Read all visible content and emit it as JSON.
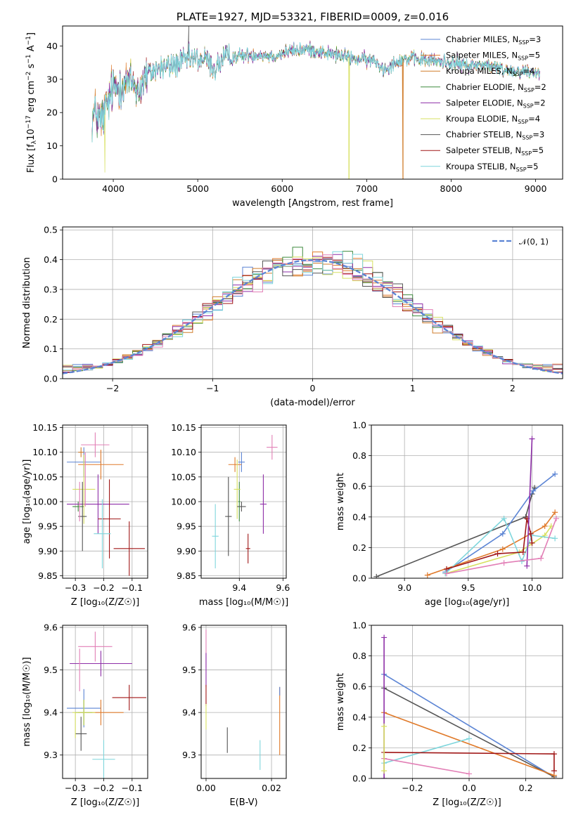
{
  "figure_title": "PLATE=1927, MJD=53321, FIBERID=0009, z=0.016",
  "colors": {
    "Chabrier MILES": "#5b84d4",
    "Salpeter MILES": "#e07a2a",
    "Kroupa MILES": "#d07d2c",
    "Chabrier ELODIE": "#3f8a3f",
    "Salpeter ELODIE": "#8e2fa8",
    "Kroupa ELODIE": "#d7e060",
    "Chabrier STELIB": "#555555",
    "Salpeter STELIB": "#a01616",
    "Kroupa STELIB": "#7fd6dc",
    "normal": "#5b84d4",
    "pink": "#e27fb6",
    "orange": "#e07a2a"
  },
  "chart_data": [
    {
      "type": "line",
      "id": "spectrum",
      "title": "PLATE=1927, MJD=53321, FIBERID=0009, z=0.016",
      "xlabel": "wavelength [Angstrom, rest frame]",
      "ylabel_parts": {
        "pre": "Flux [f",
        "sub": "λ",
        "mid": "10",
        "sup1": "−17",
        "post": " erg cm",
        "sup2": "−2",
        "post2": " s",
        "sup3": "−1",
        "post3": " A",
        "sup4": "−1",
        "end": "]"
      },
      "xlim": [
        3400,
        9320
      ],
      "ylim": [
        0,
        46
      ],
      "xticks": [
        4000,
        5000,
        6000,
        7000,
        8000,
        9000
      ],
      "yticks": [
        0,
        10,
        20,
        30,
        40
      ],
      "grid": false,
      "legend_position": "top-right",
      "legend": [
        {
          "name": "Chabrier MILES",
          "n": "3"
        },
        {
          "name": "Salpeter MILES",
          "n": "5"
        },
        {
          "name": "Kroupa MILES",
          "n": "4"
        },
        {
          "name": "Chabrier ELODIE",
          "n": "2"
        },
        {
          "name": "Salpeter ELODIE",
          "n": "2"
        },
        {
          "name": "Kroupa ELODIE",
          "n": "4"
        },
        {
          "name": "Chabrier STELIB",
          "n": "3"
        },
        {
          "name": "Salpeter STELIB",
          "n": "5"
        },
        {
          "name": "Kroupa STELIB",
          "n": "5"
        }
      ],
      "continuum": [
        [
          3750,
          18
        ],
        [
          3800,
          20
        ],
        [
          3850,
          17
        ],
        [
          3900,
          20
        ],
        [
          3950,
          24
        ],
        [
          4000,
          27
        ],
        [
          4100,
          29
        ],
        [
          4200,
          29
        ],
        [
          4300,
          27
        ],
        [
          4400,
          31
        ],
        [
          4500,
          33
        ],
        [
          4700,
          34
        ],
        [
          4900,
          36
        ],
        [
          5100,
          36
        ],
        [
          5200,
          33
        ],
        [
          5300,
          36
        ],
        [
          5500,
          37
        ],
        [
          5700,
          37.5
        ],
        [
          5900,
          37
        ],
        [
          6100,
          38.5
        ],
        [
          6300,
          39
        ],
        [
          6500,
          38
        ],
        [
          6700,
          37
        ],
        [
          6900,
          36
        ],
        [
          7100,
          35.5
        ],
        [
          7200,
          33
        ],
        [
          7400,
          36
        ],
        [
          7600,
          36
        ],
        [
          7800,
          35.5
        ],
        [
          8000,
          35
        ],
        [
          8200,
          34
        ],
        [
          8400,
          34.5
        ],
        [
          8600,
          33
        ],
        [
          8800,
          32.5
        ],
        [
          9050,
          32
        ]
      ],
      "dips": [
        [
          6790,
          0.5,
          "Kroupa ELODIE"
        ],
        [
          7430,
          0.5,
          "Kroupa MILES"
        ],
        [
          3900,
          2,
          "Kroupa ELODIE"
        ]
      ]
    },
    {
      "type": "histogram",
      "id": "residuals",
      "xlabel": "(data-model)/error",
      "ylabel": "Normed distribution",
      "xlim": [
        -2.5,
        2.5
      ],
      "ylim": [
        0,
        0.51
      ],
      "xticks": [
        -2,
        -1,
        0,
        1,
        2
      ],
      "yticks": [
        0.0,
        0.1,
        0.2,
        0.3,
        0.4,
        0.5
      ],
      "grid": true,
      "legend_position": "top-right",
      "legend_label": "𝒩(0, 1)",
      "bin_width": 0.1,
      "x_start": -2.5
    },
    {
      "type": "scatter",
      "id": "age-Z",
      "xlabel": "Z [log₁₀(Z/Z☉)]",
      "ylabel": "age  [log₁₀(age/yr)]",
      "xlim": [
        -0.345,
        -0.045
      ],
      "ylim": [
        9.845,
        10.155
      ],
      "xticks": [
        -0.3,
        -0.2,
        -0.1
      ],
      "yticks": [
        9.85,
        9.9,
        9.95,
        10.0,
        10.05,
        10.1,
        10.15
      ],
      "grid": true,
      "points": [
        {
          "x": -0.27,
          "y": 10.08,
          "xerr": 0.06,
          "yerr": 0.03,
          "series": "Chabrier MILES"
        },
        {
          "x": -0.21,
          "y": 10.075,
          "xerr": 0.08,
          "yerr": 0.03,
          "series": "Salpeter MILES"
        },
        {
          "x": -0.28,
          "y": 10.1,
          "xerr": 0.01,
          "yerr": 0.01,
          "series": "Kroupa MILES"
        },
        {
          "x": -0.29,
          "y": 9.99,
          "xerr": 0.02,
          "yerr": 0.01,
          "series": "Chabrier ELODIE"
        },
        {
          "x": -0.22,
          "y": 9.995,
          "xerr": 0.11,
          "yerr": 0.06,
          "series": "Salpeter ELODIE"
        },
        {
          "x": -0.27,
          "y": 10.025,
          "xerr": 0.04,
          "yerr": 0.07,
          "series": "Kroupa ELODIE"
        },
        {
          "x": -0.275,
          "y": 9.97,
          "xerr": 0.015,
          "yerr": 0.07,
          "series": "Chabrier STELIB"
        },
        {
          "x": -0.18,
          "y": 9.965,
          "xerr": 0.04,
          "yerr": 0.08,
          "series": "Salpeter STELIB"
        },
        {
          "x": -0.205,
          "y": 9.935,
          "xerr": 0.03,
          "yerr": 0.07,
          "series": "Kroupa STELIB"
        },
        {
          "x": -0.23,
          "y": 10.115,
          "xerr": 0.05,
          "yerr": 0.025,
          "series": "pink"
        },
        {
          "x": -0.265,
          "y": 10.045,
          "xerr": 0.0,
          "yerr": 0.055,
          "series": "pink"
        },
        {
          "x": -0.285,
          "y": 10.0,
          "xerr": 0.0,
          "yerr": 0.04,
          "series": "pink"
        },
        {
          "x": -0.11,
          "y": 9.905,
          "xerr": 0.055,
          "yerr": 0.055,
          "series": "Salpeter STELIB"
        }
      ]
    },
    {
      "type": "scatter",
      "id": "age-mass",
      "xlabel": "mass [log₁₀(M/M☉)]",
      "ylabel": "",
      "xlim": [
        9.225,
        9.615
      ],
      "ylim": [
        9.845,
        10.155
      ],
      "xticks": [
        9.4,
        9.6
      ],
      "yticks": [
        9.85,
        9.9,
        9.95,
        10.0,
        10.05,
        10.1,
        10.15
      ],
      "grid": true,
      "points": [
        {
          "x": 9.41,
          "y": 10.08,
          "xerr": 0.015,
          "yerr": 0.02,
          "series": "Chabrier MILES"
        },
        {
          "x": 9.38,
          "y": 10.075,
          "xerr": 0.03,
          "yerr": 0.015,
          "series": "Salpeter MILES"
        },
        {
          "x": 9.4,
          "y": 10.0,
          "xerr": 0.005,
          "yerr": 0.04,
          "series": "Chabrier ELODIE"
        },
        {
          "x": 9.51,
          "y": 9.995,
          "xerr": 0.015,
          "yerr": 0.06,
          "series": "Salpeter ELODIE"
        },
        {
          "x": 9.39,
          "y": 10.025,
          "xerr": 0.015,
          "yerr": 0.06,
          "series": "Kroupa ELODIE"
        },
        {
          "x": 9.35,
          "y": 9.97,
          "xerr": 0.015,
          "yerr": 0.08,
          "series": "Chabrier STELIB"
        },
        {
          "x": 9.44,
          "y": 9.905,
          "xerr": 0.01,
          "yerr": 0.03,
          "series": "Salpeter STELIB"
        },
        {
          "x": 9.29,
          "y": 9.93,
          "xerr": 0.015,
          "yerr": 0.065,
          "series": "Kroupa STELIB"
        },
        {
          "x": 9.41,
          "y": 9.99,
          "xerr": 0.02,
          "yerr": 0.01,
          "series": "Chabrier STELIB"
        },
        {
          "x": 9.55,
          "y": 10.11,
          "xerr": 0.025,
          "yerr": 0.025,
          "series": "pink"
        }
      ]
    },
    {
      "type": "line",
      "id": "weight-age",
      "xlabel": "age  [log₁₀(age/yr)]",
      "ylabel": "mass weight",
      "xlim": [
        8.74,
        10.24
      ],
      "ylim": [
        0,
        1.0
      ],
      "xticks": [
        9.0,
        9.5,
        10.0
      ],
      "yticks": [
        0.0,
        0.2,
        0.4,
        0.6,
        0.8,
        1.0
      ],
      "grid": true,
      "series": [
        {
          "name": "Chabrier STELIB",
          "x": [
            8.78,
            9.95,
            10.0,
            10.02
          ],
          "y": [
            0.01,
            0.4,
            0.55,
            0.59
          ]
        },
        {
          "name": "Chabrier MILES",
          "x": [
            9.32,
            9.77,
            10.01,
            10.18
          ],
          "y": [
            0.04,
            0.29,
            0.57,
            0.68
          ]
        },
        {
          "name": "Salpeter MILES",
          "x": [
            9.18,
            9.77,
            10.1,
            10.18
          ],
          "y": [
            0.02,
            0.19,
            0.34,
            0.43
          ]
        },
        {
          "name": "Kroupa ELODIE",
          "x": [
            9.32,
            9.9,
            10.1,
            10.15
          ],
          "y": [
            0.03,
            0.17,
            0.28,
            0.34
          ]
        },
        {
          "name": "Kroupa STELIB",
          "x": [
            9.32,
            9.78,
            9.92,
            10.0,
            10.18
          ],
          "y": [
            0.03,
            0.39,
            0.11,
            0.28,
            0.26
          ]
        },
        {
          "name": "Salpeter STELIB",
          "x": [
            9.33,
            9.73,
            9.93,
            9.96,
            9.99,
            10.0
          ],
          "y": [
            0.06,
            0.16,
            0.17,
            0.39,
            0.29,
            0.23
          ]
        },
        {
          "name": "Salpeter ELODIE",
          "x": [
            9.96,
            10.0
          ],
          "y": [
            0.08,
            0.91
          ]
        },
        {
          "name": "pink",
          "x": [
            9.33,
            9.78,
            10.07,
            10.19
          ],
          "y": [
            0.03,
            0.1,
            0.13,
            0.39
          ]
        }
      ]
    },
    {
      "type": "scatter",
      "id": "mass-Z",
      "xlabel": "Z [log₁₀(Z/Z☉)]",
      "ylabel": "mass [log₁₀(M/M☉)]",
      "xlim": [
        -0.345,
        -0.045
      ],
      "ylim": [
        9.245,
        9.605
      ],
      "xticks": [
        -0.3,
        -0.2,
        -0.1
      ],
      "yticks": [
        9.3,
        9.4,
        9.5,
        9.6
      ],
      "grid": true,
      "points": [
        {
          "x": -0.27,
          "y": 9.41,
          "xerr": 0.06,
          "yerr": 0.045,
          "series": "Chabrier MILES"
        },
        {
          "x": -0.21,
          "y": 9.4,
          "xerr": 0.08,
          "yerr": 0.03,
          "series": "Salpeter MILES"
        },
        {
          "x": -0.27,
          "y": 9.4,
          "xerr": 0.03,
          "yerr": 0.03,
          "series": "Chabrier ELODIE"
        },
        {
          "x": -0.21,
          "y": 9.515,
          "xerr": 0.11,
          "yerr": 0.03,
          "series": "Salpeter ELODIE"
        },
        {
          "x": -0.27,
          "y": 9.4,
          "xerr": 0.04,
          "yerr": 0.03,
          "series": "Kroupa ELODIE"
        },
        {
          "x": -0.28,
          "y": 9.35,
          "xerr": 0.02,
          "yerr": 0.04,
          "series": "Chabrier STELIB"
        },
        {
          "x": -0.11,
          "y": 9.435,
          "xerr": 0.06,
          "yerr": 0.03,
          "series": "Salpeter STELIB"
        },
        {
          "x": -0.2,
          "y": 9.29,
          "xerr": 0.04,
          "yerr": 0.045,
          "series": "Kroupa STELIB"
        },
        {
          "x": -0.23,
          "y": 9.555,
          "xerr": 0.06,
          "yerr": 0.035,
          "series": "pink"
        },
        {
          "x": -0.285,
          "y": 9.5,
          "xerr": 0.0,
          "yerr": 0.05,
          "series": "pink"
        },
        {
          "x": -0.3,
          "y": 9.37,
          "xerr": 0.0,
          "yerr": 0.03,
          "series": "Kroupa ELODIE"
        }
      ]
    },
    {
      "type": "scatter",
      "id": "mass-EBV",
      "xlabel": "E(B-V)",
      "ylabel": "",
      "xlim": [
        -0.0015,
        0.0245
      ],
      "ylim": [
        9.245,
        9.605
      ],
      "xticks": [
        0.0,
        0.02
      ],
      "yticks": [
        9.3,
        9.4,
        9.5,
        9.6
      ],
      "grid": true,
      "points": [
        {
          "x": 0.0,
          "y": 9.55,
          "xerr": 0.0,
          "yerr": 0.045,
          "series": "pink"
        },
        {
          "x": 0.0,
          "y": 9.5,
          "xerr": 0.0,
          "yerr": 0.04,
          "series": "Salpeter ELODIE"
        },
        {
          "x": 0.0,
          "y": 9.44,
          "xerr": 0.0,
          "yerr": 0.025,
          "series": "Salpeter STELIB"
        },
        {
          "x": 0.0,
          "y": 9.39,
          "xerr": 0.0,
          "yerr": 0.03,
          "series": "Kroupa ELODIE"
        },
        {
          "x": 0.0065,
          "y": 9.335,
          "xerr": 0.0,
          "yerr": 0.03,
          "series": "Chabrier STELIB"
        },
        {
          "x": 0.0165,
          "y": 9.3,
          "xerr": 0.0,
          "yerr": 0.035,
          "series": "Kroupa STELIB"
        },
        {
          "x": 0.0225,
          "y": 9.38,
          "xerr": 0.0,
          "yerr": 0.08,
          "series": "Salpeter MILES"
        },
        {
          "x": 0.0225,
          "y": 9.45,
          "xerr": 0.0,
          "yerr": 0.01,
          "series": "Chabrier MILES"
        }
      ]
    },
    {
      "type": "line",
      "id": "weight-Z",
      "xlabel": "Z [log₁₀(Z/Z☉)]",
      "ylabel": "mass weight",
      "xlim": [
        -0.345,
        0.33
      ],
      "ylim": [
        0,
        1.0
      ],
      "xticks": [
        -0.2,
        0.0,
        0.2
      ],
      "yticks": [
        0.0,
        0.2,
        0.4,
        0.6,
        0.8,
        1.0
      ],
      "grid": true,
      "series": [
        {
          "name": "Chabrier MILES",
          "x": [
            -0.3,
            0.3
          ],
          "y": [
            0.68,
            0.01
          ]
        },
        {
          "name": "Chabrier STELIB",
          "x": [
            -0.3,
            0.3
          ],
          "y": [
            0.59,
            0.01
          ]
        },
        {
          "name": "Salpeter MILES",
          "x": [
            -0.3,
            0.3
          ],
          "y": [
            0.43,
            0.02
          ]
        },
        {
          "name": "Kroupa STELIB",
          "x": [
            -0.3,
            0.0
          ],
          "y": [
            0.1,
            0.26
          ]
        },
        {
          "name": "pink",
          "x": [
            -0.3,
            0.0
          ],
          "y": [
            0.13,
            0.03
          ]
        },
        {
          "name": "Salpeter STELIB",
          "x": [
            -0.3,
            0.3,
            0.3
          ],
          "y": [
            0.17,
            0.16,
            0.05
          ]
        },
        {
          "name": "Salpeter ELODIE",
          "x": [
            -0.3,
            -0.3
          ],
          "y": [
            0.92,
            0.0
          ]
        },
        {
          "name": "Kroupa ELODIE",
          "x": [
            -0.3,
            -0.3
          ],
          "y": [
            0.34,
            0.05
          ]
        }
      ]
    }
  ]
}
